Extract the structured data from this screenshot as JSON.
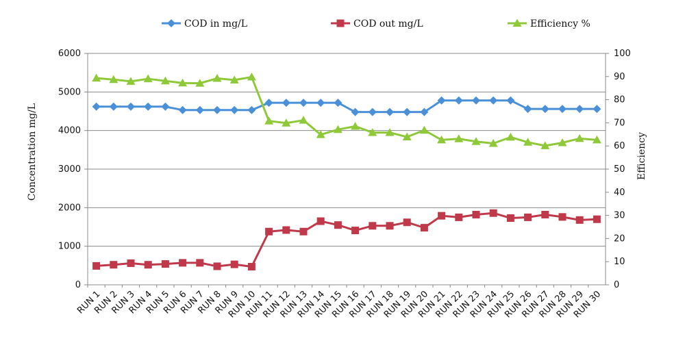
{
  "chart_data": {
    "type": "line",
    "categories": [
      "RUN 1",
      "RUN 2",
      "RUN 3",
      "RUN 4",
      "RUN 5",
      "RUN 6",
      "RUN 7",
      "RUN 8",
      "RUN 9",
      "RUN 10",
      "RUN 11",
      "RUN 12",
      "RUN 13",
      "RUN 14",
      "RUN 15",
      "RUN 16",
      "RUN 17",
      "RUN 18",
      "RUN 19",
      "RUN 20",
      "RUN 21",
      "RUN 22",
      "RUN 23",
      "RUN 24",
      "RUN 25",
      "RUN 26",
      "RUN 27",
      "RUN 28",
      "RUN 29",
      "RUN 30"
    ],
    "series": [
      {
        "name": "COD in mg/L",
        "axis": "left",
        "color": "#4a90d9",
        "marker": "diamond",
        "values": [
          4620,
          4620,
          4620,
          4620,
          4620,
          4530,
          4530,
          4530,
          4530,
          4530,
          4720,
          4720,
          4720,
          4720,
          4720,
          4480,
          4480,
          4480,
          4480,
          4480,
          4780,
          4780,
          4780,
          4780,
          4780,
          4560,
          4560,
          4560,
          4560,
          4560
        ]
      },
      {
        "name": "COD out mg/L",
        "axis": "left",
        "color": "#c0394b",
        "marker": "square",
        "values": [
          490,
          520,
          560,
          520,
          540,
          570,
          570,
          480,
          530,
          470,
          1380,
          1420,
          1380,
          1650,
          1550,
          1410,
          1530,
          1530,
          1620,
          1480,
          1790,
          1750,
          1820,
          1860,
          1730,
          1750,
          1820,
          1760,
          1680,
          1700
        ]
      },
      {
        "name": "Efficiency %",
        "axis": "right",
        "color": "#8fc93a",
        "marker": "triangle",
        "values": [
          89.3,
          88.7,
          87.9,
          89.0,
          88.1,
          87.2,
          87.1,
          89.2,
          88.5,
          89.8,
          70.8,
          69.9,
          71.1,
          64.9,
          67.1,
          68.5,
          65.8,
          65.8,
          63.9,
          66.8,
          62.6,
          63.1,
          61.9,
          61.1,
          63.8,
          61.6,
          60.1,
          61.4,
          63.2,
          62.6
        ]
      }
    ],
    "ylabel": "Concentration mg/L",
    "y2label": "Efficiency",
    "ylim": [
      0,
      6000
    ],
    "y2lim": [
      0,
      100
    ],
    "yticks": [
      "0",
      "1000",
      "2000",
      "3000",
      "4000",
      "5000",
      "6000"
    ],
    "y2ticks": [
      "0",
      "10",
      "20",
      "30",
      "40",
      "50",
      "60",
      "70",
      "80",
      "90",
      "100"
    ],
    "grid": true,
    "legend": "top"
  }
}
